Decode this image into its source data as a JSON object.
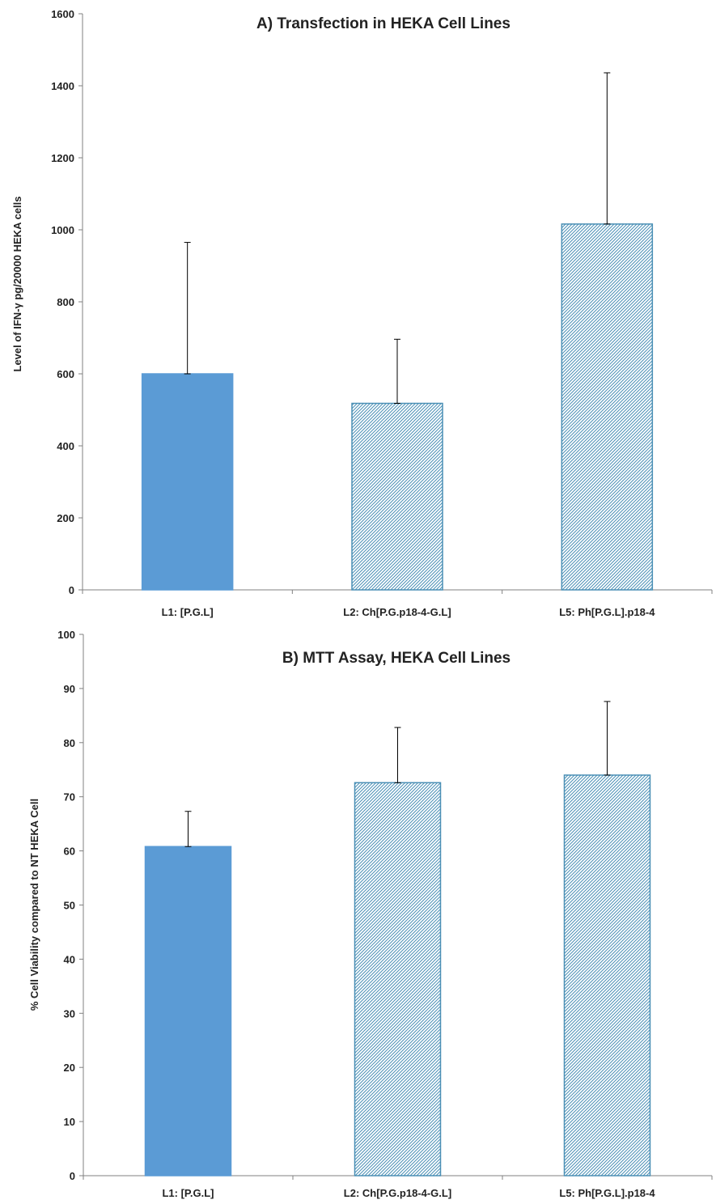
{
  "colors": {
    "solid_fill": "#5b9bd5",
    "hatch_line": "#4a8fb5",
    "hatch_bg": "#ffffff",
    "axis": "#808080",
    "text": "#222222"
  },
  "chart_data": [
    {
      "type": "bar",
      "title": "A) Transfection in HEKA Cell Lines",
      "xlabel": "",
      "ylabel": "Level of IFN-γ pg/20000 HEKA cells",
      "categories": [
        "L1: [P.G.L]",
        "L2: Ch[P.G.p18-4-G.L]",
        "L5: Ph[P.G.L].p18-4"
      ],
      "values": [
        600,
        518,
        1016
      ],
      "error_upper": [
        365,
        178,
        420
      ],
      "fill_styles": [
        "solid",
        "hatched",
        "hatched"
      ],
      "ylim": [
        0,
        1600
      ],
      "yticks": [
        0,
        200,
        400,
        600,
        800,
        1000,
        1200,
        1400,
        1600
      ],
      "grid": false,
      "legend": "none"
    },
    {
      "type": "bar",
      "title": "B) MTT Assay, HEKA Cell Lines",
      "xlabel": "",
      "ylabel": "% Cell Viability compared to NT HEKA Cell",
      "categories": [
        "L1: [P.G.L]",
        "L2: Ch[P.G.p18-4-G.L]",
        "L5: Ph[P.G.L].p18-4"
      ],
      "values": [
        60.8,
        72.6,
        74.0
      ],
      "error_upper": [
        6.5,
        10.2,
        13.6
      ],
      "fill_styles": [
        "solid",
        "hatched",
        "hatched"
      ],
      "ylim": [
        0,
        100
      ],
      "yticks": [
        0,
        10,
        20,
        30,
        40,
        50,
        60,
        70,
        80,
        90,
        100
      ],
      "grid": false,
      "legend": "none"
    }
  ]
}
